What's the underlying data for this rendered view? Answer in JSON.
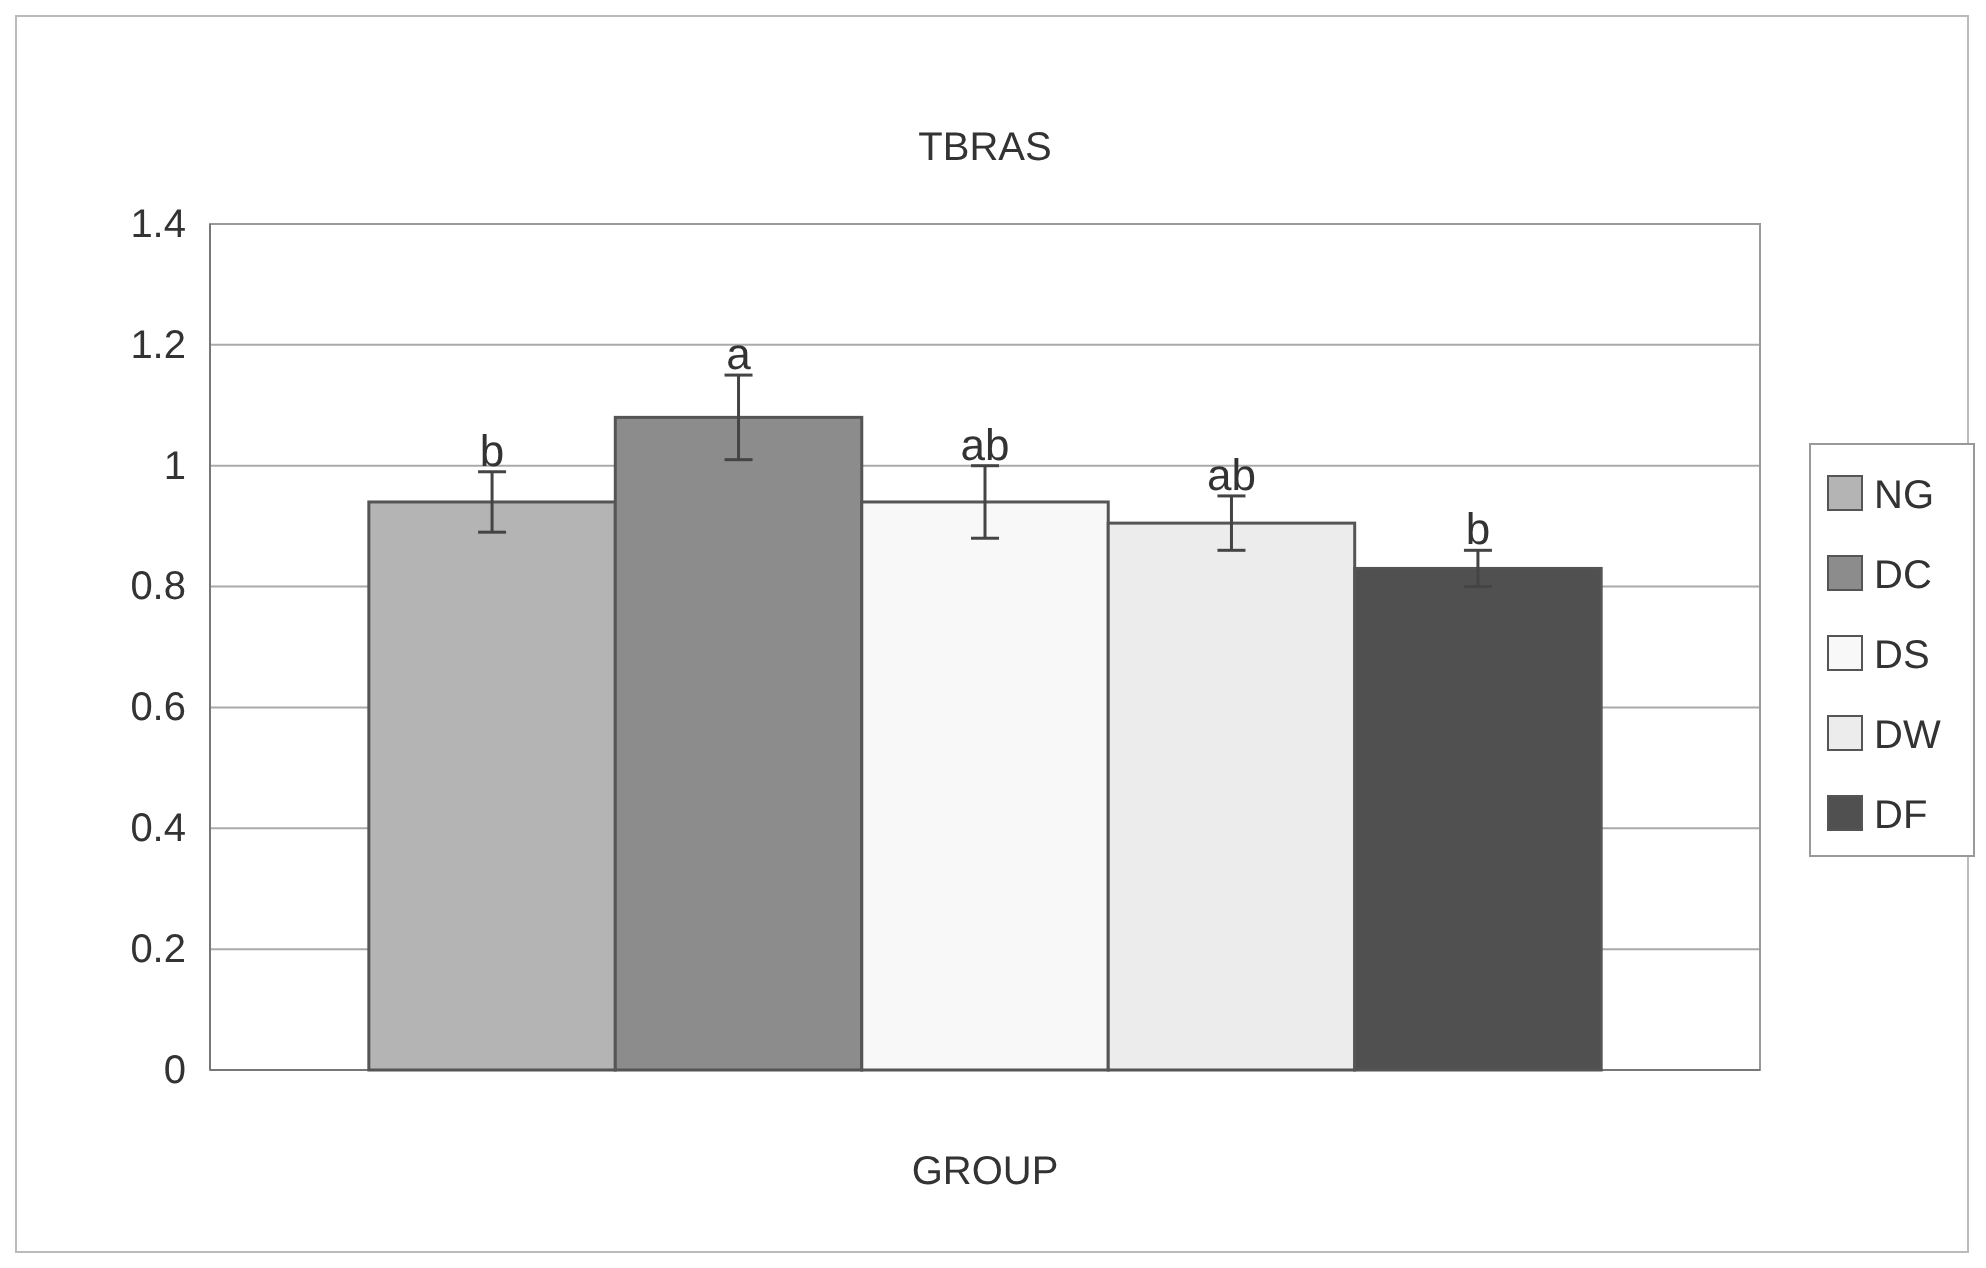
{
  "chart_data": {
    "type": "bar",
    "title": "TBRAS",
    "xlabel": "GROUP",
    "categories": [
      null
    ],
    "series": [
      {
        "name": "NG",
        "color": "#b4b4b4",
        "values": [
          0.94
        ],
        "errors": [
          0.05
        ]
      },
      {
        "name": "DC",
        "color": "#8c8c8c",
        "values": [
          1.08
        ],
        "errors": [
          0.07
        ]
      },
      {
        "name": "DS",
        "color": "#f8f8f8",
        "values": [
          0.94
        ],
        "errors": [
          0.06
        ]
      },
      {
        "name": "DW",
        "color": "#ececec",
        "values": [
          0.905
        ],
        "errors": [
          0.045
        ]
      },
      {
        "name": "DF",
        "color": "#505050",
        "values": [
          0.83
        ],
        "errors": [
          0.03
        ]
      }
    ],
    "ylim": [
      0,
      1.4
    ],
    "yticks": [
      0,
      0.2,
      0.4,
      0.6,
      0.8,
      1,
      1.2,
      1.4
    ],
    "grid": "y",
    "legend": "right",
    "annotations": [
      {
        "text": "b",
        "y": 0.99
      },
      {
        "text": "a",
        "y": 1.15
      },
      {
        "text": "ab",
        "y": 1.0
      },
      {
        "text": "ab",
        "y": 0.95
      },
      {
        "text": "b",
        "y": 0.86
      }
    ]
  }
}
